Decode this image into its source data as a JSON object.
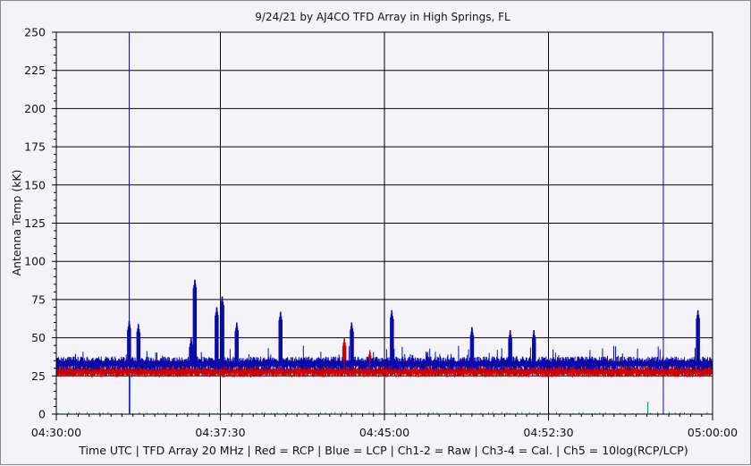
{
  "chart_data": {
    "type": "line",
    "title": "9/24/21  by  AJ4CO TFD Array  in  High Springs, FL",
    "xlabel": "Time UTC | TFD Array 20 MHz | Red = RCP | Blue = LCP | Ch1-2 = Raw | Ch3-4 = Cal. | Ch5 = 10log(RCP/LCP)",
    "ylabel": "Antenna Temp (kK)",
    "ylim": [
      0,
      250
    ],
    "yticks": [
      "0",
      "25",
      "50",
      "75",
      "100",
      "125",
      "150",
      "175",
      "200",
      "225",
      "250"
    ],
    "xrange": [
      "04:30:00",
      "05:00:00"
    ],
    "xticks": [
      "04:30:00",
      "04:37:30",
      "04:45:00",
      "04:52:30",
      "05:00:00"
    ],
    "grid": true,
    "colors": {
      "rcp": "#cc0000",
      "lcp": "#0a0aa8",
      "ch5": "#1a9a8a",
      "grid": "#000000"
    },
    "series": [
      {
        "name": "Red = RCP",
        "baseline": 28,
        "peaks": [
          {
            "t": "04:43:10",
            "v": 50
          },
          {
            "t": "04:44:20",
            "v": 42
          }
        ]
      },
      {
        "name": "Blue = LCP",
        "baseline": 33,
        "peaks": [
          {
            "t": "04:33:20",
            "v": 61
          },
          {
            "t": "04:33:45",
            "v": 59
          },
          {
            "t": "04:36:10",
            "v": 50
          },
          {
            "t": "04:36:20",
            "v": 88
          },
          {
            "t": "04:37:20",
            "v": 70
          },
          {
            "t": "04:37:35",
            "v": 77
          },
          {
            "t": "04:38:15",
            "v": 60
          },
          {
            "t": "04:40:15",
            "v": 67
          },
          {
            "t": "04:43:30",
            "v": 60
          },
          {
            "t": "04:45:20",
            "v": 68
          },
          {
            "t": "04:49:00",
            "v": 57
          },
          {
            "t": "04:50:45",
            "v": 55
          },
          {
            "t": "04:51:50",
            "v": 55
          },
          {
            "t": "04:59:20",
            "v": 68
          }
        ]
      },
      {
        "name": "Ch5 = 10log(RCP/LCP)",
        "baseline": 0,
        "peaks": [
          {
            "t": "04:33:20",
            "v": 25
          },
          {
            "t": "04:57:00",
            "v": 8
          }
        ]
      }
    ],
    "markers": [
      "04:33:20",
      "04:57:45"
    ]
  }
}
